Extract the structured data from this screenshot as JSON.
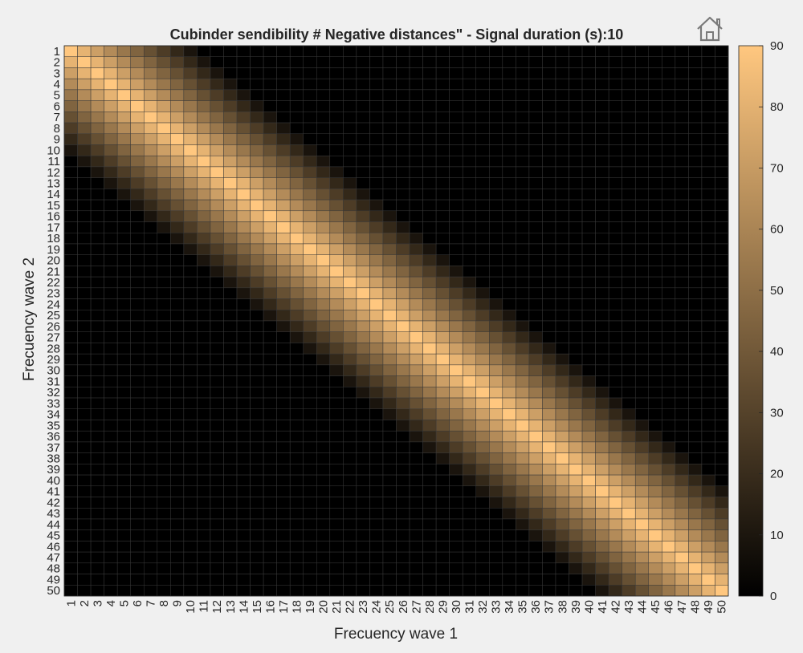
{
  "toolbar": {
    "home_icon": "home-icon"
  },
  "chart_data": {
    "type": "heatmap",
    "title": "Cubinder sendibility # Negative distances\" - Signal duration (s):10",
    "xlabel": "Frecuency wave 1",
    "ylabel": "Frecuency wave 2",
    "x_categories": [
      "1",
      "2",
      "3",
      "4",
      "5",
      "6",
      "7",
      "8",
      "9",
      "10",
      "11",
      "12",
      "13",
      "14",
      "15",
      "16",
      "17",
      "18",
      "19",
      "20",
      "21",
      "22",
      "23",
      "24",
      "25",
      "26",
      "27",
      "28",
      "29",
      "30",
      "31",
      "32",
      "33",
      "34",
      "35",
      "36",
      "37",
      "38",
      "39",
      "40",
      "41",
      "42",
      "43",
      "44",
      "45",
      "46",
      "47",
      "48",
      "49",
      "50"
    ],
    "y_categories": [
      "1",
      "2",
      "3",
      "4",
      "5",
      "6",
      "7",
      "8",
      "9",
      "10",
      "11",
      "12",
      "13",
      "14",
      "15",
      "16",
      "17",
      "18",
      "19",
      "20",
      "21",
      "22",
      "23",
      "24",
      "25",
      "26",
      "27",
      "28",
      "29",
      "30",
      "31",
      "32",
      "33",
      "34",
      "35",
      "36",
      "37",
      "38",
      "39",
      "40",
      "41",
      "42",
      "43",
      "44",
      "45",
      "46",
      "47",
      "48",
      "49",
      "50"
    ],
    "value_model": "value(i,j) = max(0, 90 - 9 * |i - j|) for x index i and y index j; peak 90 on the diagonal, 0 beyond 9 steps away",
    "peak": 90,
    "falloff_per_step": 9,
    "colormap": "copper",
    "colormap_colors": [
      "#000000",
      "#ffc77f"
    ],
    "clim": [
      0,
      90
    ],
    "colorbar_ticks": [
      "0",
      "10",
      "20",
      "30",
      "40",
      "50",
      "60",
      "70",
      "80",
      "90"
    ],
    "grid": true
  }
}
